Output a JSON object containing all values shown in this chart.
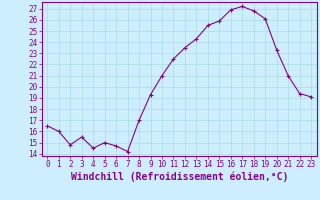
{
  "x": [
    0,
    1,
    2,
    3,
    4,
    5,
    6,
    7,
    8,
    9,
    10,
    11,
    12,
    13,
    14,
    15,
    16,
    17,
    18,
    19,
    20,
    21,
    22,
    23
  ],
  "y": [
    16.5,
    16.0,
    14.8,
    15.5,
    14.5,
    15.0,
    14.7,
    14.2,
    17.0,
    19.3,
    21.0,
    22.5,
    23.5,
    24.3,
    25.5,
    25.9,
    26.9,
    27.2,
    26.8,
    26.1,
    23.3,
    21.0,
    19.4,
    19.1
  ],
  "line_color": "#880088",
  "marker": "+",
  "marker_size": 3,
  "background_color": "#cceeff",
  "grid_color": "#aadddd",
  "xlabel": "Windchill (Refroidissement éolien,°C)",
  "xlabel_color": "#880088",
  "ylim": [
    13.8,
    27.6
  ],
  "xlim": [
    -0.5,
    23.5
  ],
  "yticks": [
    14,
    15,
    16,
    17,
    18,
    19,
    20,
    21,
    22,
    23,
    24,
    25,
    26,
    27
  ],
  "xticks": [
    0,
    1,
    2,
    3,
    4,
    5,
    6,
    7,
    8,
    9,
    10,
    11,
    12,
    13,
    14,
    15,
    16,
    17,
    18,
    19,
    20,
    21,
    22,
    23
  ],
  "tick_color": "#880088",
  "tick_fontsize": 5.5,
  "xlabel_fontsize": 7.0,
  "spine_color": "#880088",
  "axis_bg": "#cceeff",
  "linewidth": 0.8,
  "markeredgewidth": 0.8
}
